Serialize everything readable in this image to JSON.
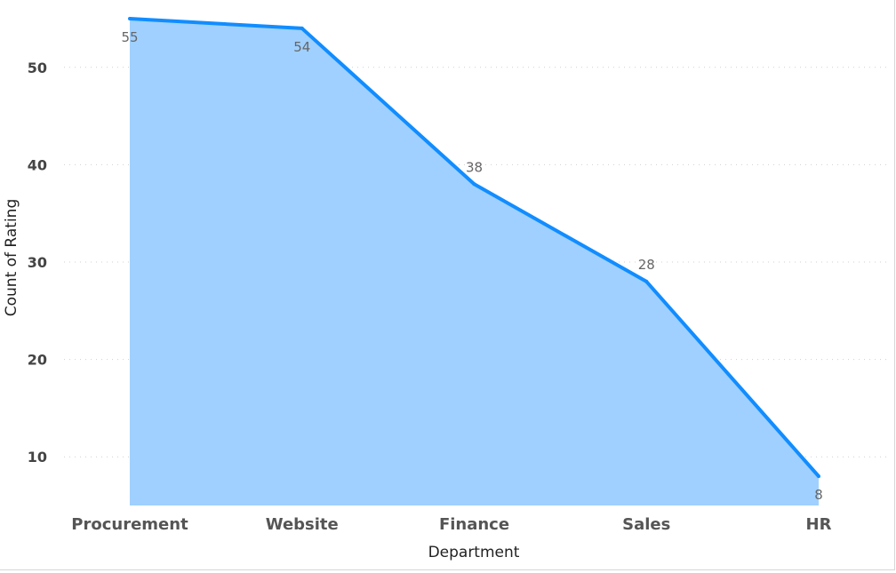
{
  "chart_data": {
    "type": "area",
    "title": "",
    "xlabel": "Department",
    "ylabel": "Count of Rating",
    "categories": [
      "Procurement",
      "Website",
      "Finance",
      "Sales",
      "HR"
    ],
    "values": [
      55,
      54,
      38,
      28,
      8
    ],
    "data_labels": [
      "55",
      "54",
      "38",
      "28",
      "8"
    ],
    "yticks": [
      10,
      20,
      30,
      40,
      50
    ],
    "ytick_labels": [
      "10",
      "20",
      "30",
      "40",
      "50"
    ],
    "ylim": [
      5,
      56
    ],
    "grid": true,
    "colors": {
      "line": "#118DFF",
      "fill": "#A0D0FF",
      "grid": "#cfcfcf"
    }
  }
}
